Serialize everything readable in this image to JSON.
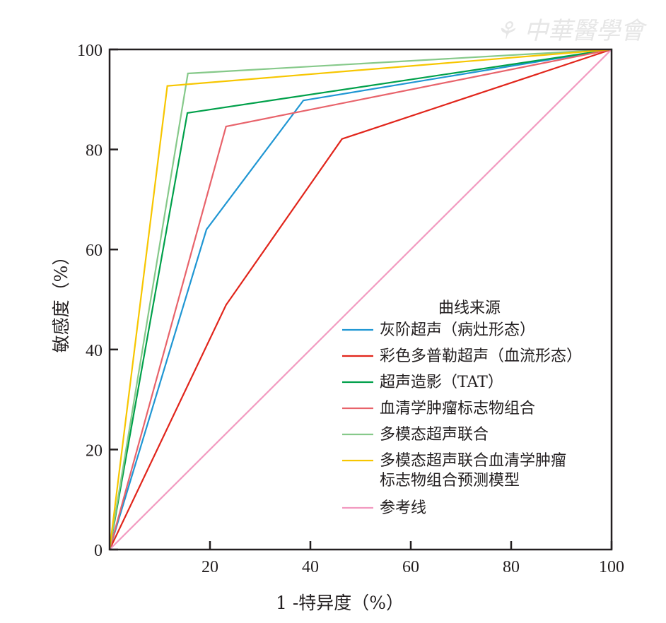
{
  "watermark_logo": "中華醫學會",
  "chart_data": {
    "type": "line",
    "title": "",
    "xlabel": "1 -特异度（%）",
    "ylabel": "敏感度（%）",
    "xlim": [
      0,
      100
    ],
    "ylim": [
      0,
      100
    ],
    "x_ticks": [
      "20",
      "40",
      "60",
      "80",
      "100"
    ],
    "y_ticks": [
      "0",
      "20",
      "40",
      "60",
      "80",
      "100"
    ],
    "x_tick_values": [
      20,
      40,
      60,
      80,
      100
    ],
    "y_tick_values": [
      0,
      20,
      40,
      60,
      80,
      100
    ],
    "grid": false,
    "legend_title": "曲线来源",
    "legend_position": "bottom-right",
    "series": [
      {
        "name": "灰阶超声（病灶形态）",
        "color": "#1f96d3",
        "points": [
          [
            0,
            0
          ],
          [
            19.3,
            64.0
          ],
          [
            38.6,
            89.8
          ],
          [
            100,
            100
          ]
        ]
      },
      {
        "name": "彩色多普勒超声（血流形态）",
        "color": "#e1251b",
        "points": [
          [
            0,
            0
          ],
          [
            23.2,
            48.9
          ],
          [
            46.3,
            82.1
          ],
          [
            100,
            100
          ]
        ]
      },
      {
        "name": "超声造影（TAT）",
        "color": "#00a04a",
        "points": [
          [
            0,
            0
          ],
          [
            15.5,
            87.3
          ],
          [
            100,
            100
          ]
        ]
      },
      {
        "name": "血清学肿瘤标志物组合",
        "color": "#e8636b",
        "points": [
          [
            0,
            0
          ],
          [
            23.2,
            84.6
          ],
          [
            100,
            100
          ]
        ]
      },
      {
        "name": "多模态超声联合",
        "color": "#86c98a",
        "points": [
          [
            0,
            0
          ],
          [
            15.6,
            95.2
          ],
          [
            100,
            100
          ]
        ]
      },
      {
        "name": "多模态超声联合血清学肿瘤\n标志物组合预测模型",
        "name_lines": [
          "多模态超声联合血清学肿瘤",
          "标志物组合预测模型"
        ],
        "color": "#f7c600",
        "points": [
          [
            0,
            0
          ],
          [
            11.5,
            92.7
          ],
          [
            100,
            100
          ]
        ]
      },
      {
        "name": "参考线",
        "color": "#f29ac0",
        "points": [
          [
            0,
            0
          ],
          [
            100,
            100
          ]
        ]
      }
    ]
  }
}
